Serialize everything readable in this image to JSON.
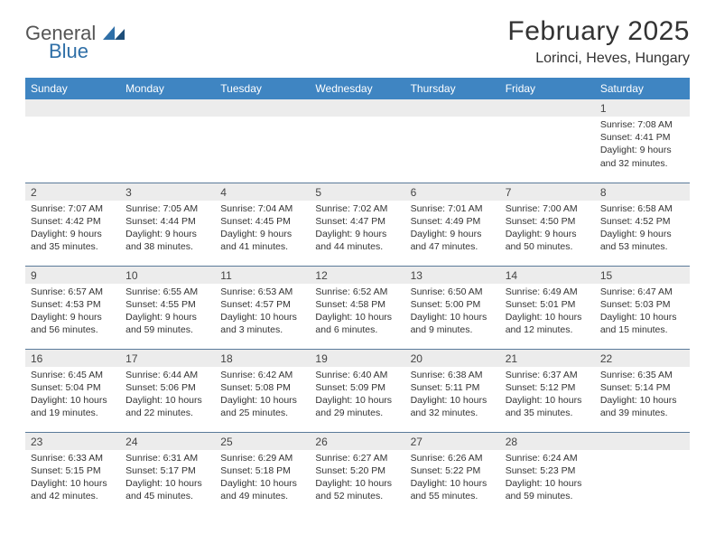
{
  "logo": {
    "word1": "General",
    "word2": "Blue"
  },
  "title": "February 2025",
  "location": "Lorinci, Heves, Hungary",
  "header_bg": "#3f85c2",
  "separator_color": "#5a7a9a",
  "daynum_bg": "#ececec",
  "days_of_week": [
    "Sunday",
    "Monday",
    "Tuesday",
    "Wednesday",
    "Thursday",
    "Friday",
    "Saturday"
  ],
  "weeks": [
    [
      null,
      null,
      null,
      null,
      null,
      null,
      {
        "n": "1",
        "sr": "7:08 AM",
        "ss": "4:41 PM",
        "dl": "9 hours and 32 minutes."
      }
    ],
    [
      {
        "n": "2",
        "sr": "7:07 AM",
        "ss": "4:42 PM",
        "dl": "9 hours and 35 minutes."
      },
      {
        "n": "3",
        "sr": "7:05 AM",
        "ss": "4:44 PM",
        "dl": "9 hours and 38 minutes."
      },
      {
        "n": "4",
        "sr": "7:04 AM",
        "ss": "4:45 PM",
        "dl": "9 hours and 41 minutes."
      },
      {
        "n": "5",
        "sr": "7:02 AM",
        "ss": "4:47 PM",
        "dl": "9 hours and 44 minutes."
      },
      {
        "n": "6",
        "sr": "7:01 AM",
        "ss": "4:49 PM",
        "dl": "9 hours and 47 minutes."
      },
      {
        "n": "7",
        "sr": "7:00 AM",
        "ss": "4:50 PM",
        "dl": "9 hours and 50 minutes."
      },
      {
        "n": "8",
        "sr": "6:58 AM",
        "ss": "4:52 PM",
        "dl": "9 hours and 53 minutes."
      }
    ],
    [
      {
        "n": "9",
        "sr": "6:57 AM",
        "ss": "4:53 PM",
        "dl": "9 hours and 56 minutes."
      },
      {
        "n": "10",
        "sr": "6:55 AM",
        "ss": "4:55 PM",
        "dl": "9 hours and 59 minutes."
      },
      {
        "n": "11",
        "sr": "6:53 AM",
        "ss": "4:57 PM",
        "dl": "10 hours and 3 minutes."
      },
      {
        "n": "12",
        "sr": "6:52 AM",
        "ss": "4:58 PM",
        "dl": "10 hours and 6 minutes."
      },
      {
        "n": "13",
        "sr": "6:50 AM",
        "ss": "5:00 PM",
        "dl": "10 hours and 9 minutes."
      },
      {
        "n": "14",
        "sr": "6:49 AM",
        "ss": "5:01 PM",
        "dl": "10 hours and 12 minutes."
      },
      {
        "n": "15",
        "sr": "6:47 AM",
        "ss": "5:03 PM",
        "dl": "10 hours and 15 minutes."
      }
    ],
    [
      {
        "n": "16",
        "sr": "6:45 AM",
        "ss": "5:04 PM",
        "dl": "10 hours and 19 minutes."
      },
      {
        "n": "17",
        "sr": "6:44 AM",
        "ss": "5:06 PM",
        "dl": "10 hours and 22 minutes."
      },
      {
        "n": "18",
        "sr": "6:42 AM",
        "ss": "5:08 PM",
        "dl": "10 hours and 25 minutes."
      },
      {
        "n": "19",
        "sr": "6:40 AM",
        "ss": "5:09 PM",
        "dl": "10 hours and 29 minutes."
      },
      {
        "n": "20",
        "sr": "6:38 AM",
        "ss": "5:11 PM",
        "dl": "10 hours and 32 minutes."
      },
      {
        "n": "21",
        "sr": "6:37 AM",
        "ss": "5:12 PM",
        "dl": "10 hours and 35 minutes."
      },
      {
        "n": "22",
        "sr": "6:35 AM",
        "ss": "5:14 PM",
        "dl": "10 hours and 39 minutes."
      }
    ],
    [
      {
        "n": "23",
        "sr": "6:33 AM",
        "ss": "5:15 PM",
        "dl": "10 hours and 42 minutes."
      },
      {
        "n": "24",
        "sr": "6:31 AM",
        "ss": "5:17 PM",
        "dl": "10 hours and 45 minutes."
      },
      {
        "n": "25",
        "sr": "6:29 AM",
        "ss": "5:18 PM",
        "dl": "10 hours and 49 minutes."
      },
      {
        "n": "26",
        "sr": "6:27 AM",
        "ss": "5:20 PM",
        "dl": "10 hours and 52 minutes."
      },
      {
        "n": "27",
        "sr": "6:26 AM",
        "ss": "5:22 PM",
        "dl": "10 hours and 55 minutes."
      },
      {
        "n": "28",
        "sr": "6:24 AM",
        "ss": "5:23 PM",
        "dl": "10 hours and 59 minutes."
      },
      null
    ]
  ],
  "labels": {
    "sunrise": "Sunrise:",
    "sunset": "Sunset:",
    "daylight": "Daylight:"
  }
}
